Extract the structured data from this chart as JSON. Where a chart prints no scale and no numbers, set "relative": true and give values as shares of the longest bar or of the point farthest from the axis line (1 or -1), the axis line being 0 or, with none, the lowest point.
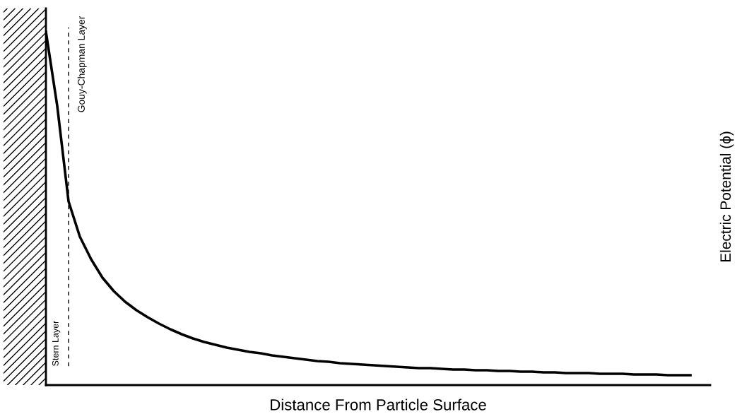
{
  "chart_data": {
    "type": "line",
    "relative": true,
    "xlabel": "Distance From Particle Surface",
    "ylabel": "Electric Potential (ϕ)",
    "categories": [
      null,
      null,
      null,
      null,
      null,
      null,
      null,
      null,
      null,
      null,
      null,
      null,
      null,
      null,
      null,
      null,
      null,
      null,
      null,
      null,
      null,
      null,
      null,
      null,
      null,
      null,
      null,
      null,
      null,
      null,
      null,
      null,
      null,
      null,
      null,
      null,
      null,
      null,
      null,
      null,
      null,
      null,
      null,
      null,
      null,
      null,
      null,
      null,
      null,
      null,
      null,
      null,
      null,
      null,
      null,
      null,
      null,
      null
    ],
    "series": [
      {
        "color": "#000000",
        "values": [
          1,
          0.79,
          0.52,
          0.42,
          0.356,
          0.304,
          0.266,
          0.236,
          0.212,
          0.192,
          0.174,
          0.158,
          0.144,
          0.132,
          0.122,
          0.114,
          0.106,
          0.1,
          0.094,
          0.09,
          0.084,
          0.08,
          0.076,
          0.072,
          0.068,
          0.066,
          0.062,
          0.06,
          0.058,
          0.056,
          0.054,
          0.052,
          0.05,
          0.048,
          0.048,
          0.046,
          0.044,
          0.044,
          0.042,
          0.042,
          0.04,
          0.04,
          0.038,
          0.038,
          0.036,
          0.036,
          0.034,
          0.034,
          0.034,
          0.032,
          0.032,
          0.032,
          0.03,
          0.03,
          0.03,
          0.028,
          0.028,
          0.028
        ]
      }
    ],
    "annotations": [
      "Stern Layer",
      "Gouy-Chapman Layer"
    ]
  }
}
